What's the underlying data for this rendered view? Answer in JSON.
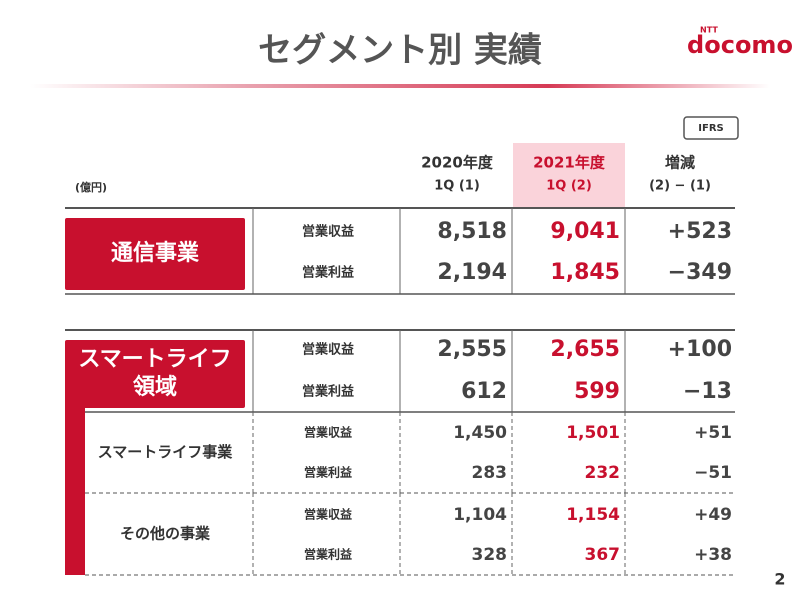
{
  "header": {
    "title": "セグメント別 実績",
    "logo_top": "NTT",
    "logo": "docomo"
  },
  "badge": "IFRS",
  "unit": "(億円)",
  "columns": [
    {
      "line1": "2020年度",
      "line2": "1Q (1)"
    },
    {
      "line1": "2021年度",
      "line2": "1Q (2)"
    },
    {
      "line1": "増減",
      "line2": "(2) − (1)"
    }
  ],
  "segments": [
    {
      "name": [
        "通信事業"
      ],
      "rows": [
        {
          "item": "営業収益",
          "values": [
            "8,518",
            "9,041",
            "+523"
          ]
        },
        {
          "item": "営業利益",
          "values": [
            "2,194",
            "1,845",
            "−349"
          ]
        }
      ],
      "subsegments": []
    },
    {
      "name": [
        "スマートライフ",
        "領域"
      ],
      "rows": [
        {
          "item": "営業収益",
          "values": [
            "2,555",
            "2,655",
            "+100"
          ]
        },
        {
          "item": "営業利益",
          "values": [
            "612",
            "599",
            "−13"
          ]
        }
      ],
      "subsegments": [
        {
          "name": "スマートライフ事業",
          "rows": [
            {
              "item": "営業収益",
              "values": [
                "1,450",
                "1,501",
                "+51"
              ]
            },
            {
              "item": "営業利益",
              "values": [
                "283",
                "232",
                "−51"
              ]
            }
          ]
        },
        {
          "name": "その他の事業",
          "rows": [
            {
              "item": "営業収益",
              "values": [
                "1,104",
                "1,154",
                "+49"
              ]
            },
            {
              "item": "営業利益",
              "values": [
                "328",
                "367",
                "+38"
              ]
            }
          ]
        }
      ]
    }
  ],
  "page_number": "2"
}
